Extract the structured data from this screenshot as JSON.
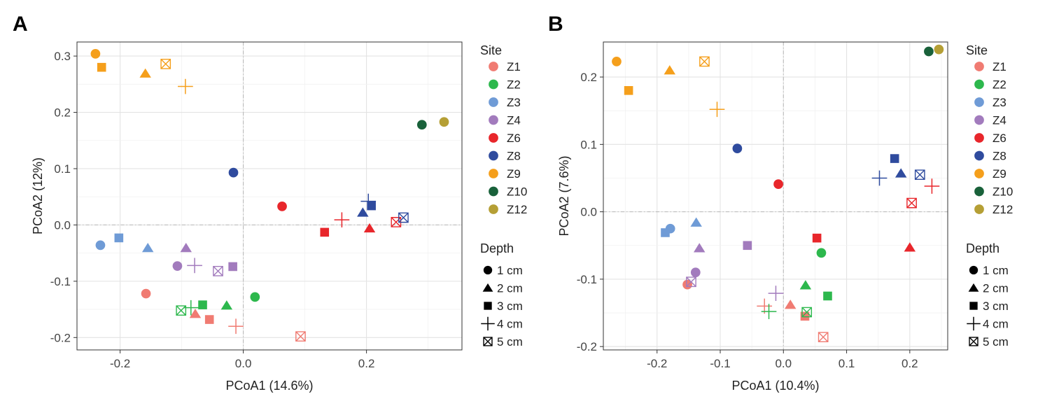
{
  "panels": [
    {
      "tag": "A",
      "xlabel": "PCoA1 (14.6%)",
      "ylabel": "PCoA2 (12%)",
      "xlim": [
        -0.27,
        0.355
      ],
      "ylim": [
        -0.222,
        0.325
      ],
      "xticks": [
        -0.2,
        0.0,
        0.2
      ],
      "xtick_labels": [
        "-0.2",
        "0.0",
        "0.2"
      ],
      "yticks": [
        -0.2,
        -0.1,
        0.0,
        0.1,
        0.2,
        0.3
      ],
      "ytick_labels": [
        "-0.2",
        "-0.1",
        "0.0",
        "0.1",
        "0.2",
        "0.3"
      ]
    },
    {
      "tag": "B",
      "xlabel": "PCoA1 (10.4%)",
      "ylabel": "PCoA2 (7.6%)",
      "xlim": [
        -0.285,
        0.26
      ],
      "ylim": [
        -0.205,
        0.252
      ],
      "xticks": [
        -0.2,
        -0.1,
        0.0,
        0.1,
        0.2
      ],
      "xtick_labels": [
        "-0.2",
        "-0.1",
        "0.0",
        "0.1",
        "0.2"
      ],
      "yticks": [
        -0.2,
        -0.1,
        0.0,
        0.1,
        0.2
      ],
      "ytick_labels": [
        "-0.2",
        "-0.1",
        "0.0",
        "0.1",
        "0.2"
      ]
    }
  ],
  "legend": {
    "site_title": "Site",
    "depth_title": "Depth",
    "sites": [
      {
        "label": "Z1",
        "color": "#f07b72"
      },
      {
        "label": "Z2",
        "color": "#2db84d"
      },
      {
        "label": "Z3",
        "color": "#6f9bd6"
      },
      {
        "label": "Z4",
        "color": "#a27bbd"
      },
      {
        "label": "Z6",
        "color": "#e8262b"
      },
      {
        "label": "Z8",
        "color": "#2f4b9e"
      },
      {
        "label": "Z9",
        "color": "#f59f1b"
      },
      {
        "label": "Z10",
        "color": "#19613a"
      },
      {
        "label": "Z12",
        "color": "#b59f35"
      }
    ],
    "depths": [
      {
        "label": "1 cm",
        "shape": "circle"
      },
      {
        "label": "2 cm",
        "shape": "triangle"
      },
      {
        "label": "3 cm",
        "shape": "square"
      },
      {
        "label": "4 cm",
        "shape": "plus"
      },
      {
        "label": "5 cm",
        "shape": "boxx"
      }
    ]
  },
  "chart_data": [
    {
      "type": "scatter",
      "panel": "A",
      "title": "",
      "xlabel": "PCoA1 (14.6%)",
      "ylabel": "PCoA2 (12%)",
      "xlim": [
        -0.27,
        0.355
      ],
      "ylim": [
        -0.222,
        0.325
      ],
      "grid": true,
      "points": [
        {
          "site": "Z1",
          "depth": "1 cm",
          "x": -0.158,
          "y": -0.122
        },
        {
          "site": "Z1",
          "depth": "2 cm",
          "x": -0.078,
          "y": -0.158
        },
        {
          "site": "Z1",
          "depth": "3 cm",
          "x": -0.055,
          "y": -0.168
        },
        {
          "site": "Z1",
          "depth": "4 cm",
          "x": -0.012,
          "y": -0.18
        },
        {
          "site": "Z1",
          "depth": "5 cm",
          "x": 0.093,
          "y": -0.198
        },
        {
          "site": "Z2",
          "depth": "1 cm",
          "x": 0.019,
          "y": -0.128
        },
        {
          "site": "Z2",
          "depth": "2 cm",
          "x": -0.027,
          "y": -0.143
        },
        {
          "site": "Z2",
          "depth": "3 cm",
          "x": -0.066,
          "y": -0.142
        },
        {
          "site": "Z2",
          "depth": "4 cm",
          "x": -0.085,
          "y": -0.147
        },
        {
          "site": "Z2",
          "depth": "5 cm",
          "x": -0.101,
          "y": -0.152
        },
        {
          "site": "Z3",
          "depth": "1 cm",
          "x": -0.232,
          "y": -0.036
        },
        {
          "site": "Z3",
          "depth": "2 cm",
          "x": -0.155,
          "y": -0.041
        },
        {
          "site": "Z3",
          "depth": "3 cm",
          "x": -0.202,
          "y": -0.023
        },
        {
          "site": "Z4",
          "depth": "1 cm",
          "x": -0.107,
          "y": -0.073
        },
        {
          "site": "Z4",
          "depth": "2 cm",
          "x": -0.093,
          "y": -0.041
        },
        {
          "site": "Z4",
          "depth": "3 cm",
          "x": -0.017,
          "y": -0.074
        },
        {
          "site": "Z4",
          "depth": "4 cm",
          "x": -0.079,
          "y": -0.072
        },
        {
          "site": "Z4",
          "depth": "5 cm",
          "x": -0.041,
          "y": -0.082
        },
        {
          "site": "Z6",
          "depth": "1 cm",
          "x": 0.063,
          "y": 0.033
        },
        {
          "site": "Z6",
          "depth": "2 cm",
          "x": 0.205,
          "y": -0.006
        },
        {
          "site": "Z6",
          "depth": "3 cm",
          "x": 0.132,
          "y": -0.013
        },
        {
          "site": "Z6",
          "depth": "4 cm",
          "x": 0.16,
          "y": 0.009
        },
        {
          "site": "Z6",
          "depth": "5 cm",
          "x": 0.248,
          "y": 0.005
        },
        {
          "site": "Z8",
          "depth": "1 cm",
          "x": -0.016,
          "y": 0.093
        },
        {
          "site": "Z8",
          "depth": "2 cm",
          "x": 0.194,
          "y": 0.022
        },
        {
          "site": "Z8",
          "depth": "3 cm",
          "x": 0.208,
          "y": 0.034
        },
        {
          "site": "Z8",
          "depth": "4 cm",
          "x": 0.203,
          "y": 0.042
        },
        {
          "site": "Z8",
          "depth": "5 cm",
          "x": 0.26,
          "y": 0.013
        },
        {
          "site": "Z9",
          "depth": "1 cm",
          "x": -0.24,
          "y": 0.304
        },
        {
          "site": "Z9",
          "depth": "2 cm",
          "x": -0.159,
          "y": 0.269
        },
        {
          "site": "Z9",
          "depth": "3 cm",
          "x": -0.23,
          "y": 0.28
        },
        {
          "site": "Z9",
          "depth": "4 cm",
          "x": -0.094,
          "y": 0.246
        },
        {
          "site": "Z9",
          "depth": "5 cm",
          "x": -0.126,
          "y": 0.286
        },
        {
          "site": "Z10",
          "depth": "1 cm",
          "x": 0.29,
          "y": 0.178
        },
        {
          "site": "Z12",
          "depth": "1 cm",
          "x": 0.326,
          "y": 0.183
        }
      ]
    },
    {
      "type": "scatter",
      "panel": "B",
      "title": "",
      "xlabel": "PCoA1 (10.4%)",
      "ylabel": "PCoA2 (7.6%)",
      "xlim": [
        -0.285,
        0.26
      ],
      "ylim": [
        -0.205,
        0.252
      ],
      "grid": true,
      "points": [
        {
          "site": "Z1",
          "depth": "1 cm",
          "x": -0.152,
          "y": -0.108
        },
        {
          "site": "Z1",
          "depth": "2 cm",
          "x": 0.011,
          "y": -0.138
        },
        {
          "site": "Z1",
          "depth": "3 cm",
          "x": 0.034,
          "y": -0.155
        },
        {
          "site": "Z1",
          "depth": "4 cm",
          "x": -0.03,
          "y": -0.14
        },
        {
          "site": "Z1",
          "depth": "5 cm",
          "x": 0.063,
          "y": -0.186
        },
        {
          "site": "Z2",
          "depth": "1 cm",
          "x": 0.06,
          "y": -0.061
        },
        {
          "site": "Z2",
          "depth": "2 cm",
          "x": 0.035,
          "y": -0.109
        },
        {
          "site": "Z2",
          "depth": "3 cm",
          "x": 0.07,
          "y": -0.125
        },
        {
          "site": "Z2",
          "depth": "4 cm",
          "x": -0.023,
          "y": -0.148
        },
        {
          "site": "Z2",
          "depth": "5 cm",
          "x": 0.037,
          "y": -0.149
        },
        {
          "site": "Z3",
          "depth": "1 cm",
          "x": -0.179,
          "y": -0.025
        },
        {
          "site": "Z3",
          "depth": "2 cm",
          "x": -0.138,
          "y": -0.016
        },
        {
          "site": "Z3",
          "depth": "3 cm",
          "x": -0.187,
          "y": -0.031
        },
        {
          "site": "Z4",
          "depth": "1 cm",
          "x": -0.139,
          "y": -0.09
        },
        {
          "site": "Z4",
          "depth": "2 cm",
          "x": -0.133,
          "y": -0.054
        },
        {
          "site": "Z4",
          "depth": "3 cm",
          "x": -0.057,
          "y": -0.05
        },
        {
          "site": "Z4",
          "depth": "4 cm",
          "x": -0.012,
          "y": -0.121
        },
        {
          "site": "Z4",
          "depth": "5 cm",
          "x": -0.146,
          "y": -0.104
        },
        {
          "site": "Z6",
          "depth": "1 cm",
          "x": -0.008,
          "y": 0.041
        },
        {
          "site": "Z6",
          "depth": "2 cm",
          "x": 0.2,
          "y": -0.053
        },
        {
          "site": "Z6",
          "depth": "3 cm",
          "x": 0.053,
          "y": -0.039
        },
        {
          "site": "Z6",
          "depth": "4 cm",
          "x": 0.235,
          "y": 0.038
        },
        {
          "site": "Z6",
          "depth": "5 cm",
          "x": 0.203,
          "y": 0.013
        },
        {
          "site": "Z8",
          "depth": "1 cm",
          "x": -0.073,
          "y": 0.094
        },
        {
          "site": "Z8",
          "depth": "2 cm",
          "x": 0.186,
          "y": 0.057
        },
        {
          "site": "Z8",
          "depth": "3 cm",
          "x": 0.176,
          "y": 0.079
        },
        {
          "site": "Z8",
          "depth": "4 cm",
          "x": 0.152,
          "y": 0.05
        },
        {
          "site": "Z8",
          "depth": "5 cm",
          "x": 0.216,
          "y": 0.055
        },
        {
          "site": "Z9",
          "depth": "1 cm",
          "x": -0.264,
          "y": 0.223
        },
        {
          "site": "Z9",
          "depth": "2 cm",
          "x": -0.18,
          "y": 0.21
        },
        {
          "site": "Z9",
          "depth": "3 cm",
          "x": -0.245,
          "y": 0.18
        },
        {
          "site": "Z9",
          "depth": "4 cm",
          "x": -0.105,
          "y": 0.152
        },
        {
          "site": "Z9",
          "depth": "5 cm",
          "x": -0.125,
          "y": 0.223
        },
        {
          "site": "Z10",
          "depth": "1 cm",
          "x": 0.23,
          "y": 0.238
        },
        {
          "site": "Z12",
          "depth": "1 cm",
          "x": 0.246,
          "y": 0.241
        }
      ]
    }
  ]
}
